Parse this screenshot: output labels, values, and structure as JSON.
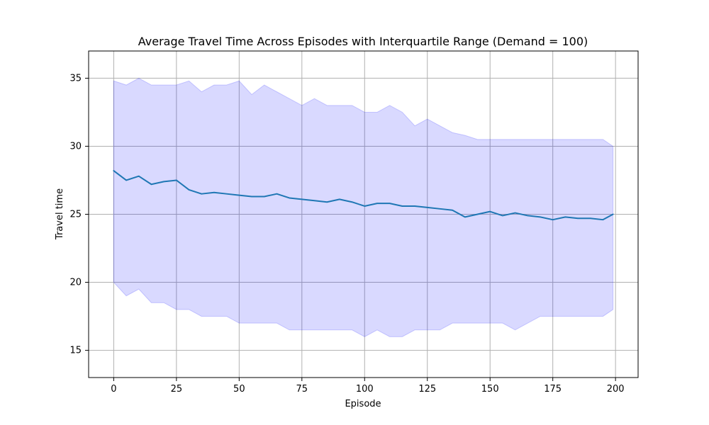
{
  "chart_data": {
    "type": "line",
    "title": "Average Travel Time Across Episodes with Interquartile Range (Demand = 100)",
    "xlabel": "Episode",
    "ylabel": "Travel time",
    "xlim": [
      -10,
      209
    ],
    "ylim": [
      13,
      37
    ],
    "xticks": [
      0,
      25,
      50,
      75,
      100,
      125,
      150,
      175,
      200
    ],
    "yticks": [
      15,
      20,
      25,
      30,
      35
    ],
    "grid": true,
    "x": [
      0,
      5,
      10,
      15,
      20,
      25,
      30,
      35,
      40,
      45,
      50,
      55,
      60,
      65,
      70,
      75,
      80,
      85,
      90,
      95,
      100,
      105,
      110,
      115,
      120,
      125,
      130,
      135,
      140,
      145,
      150,
      155,
      160,
      165,
      170,
      175,
      180,
      185,
      190,
      195,
      199
    ],
    "series": [
      {
        "type": "line",
        "color": "#1f77b4",
        "values": [
          28.2,
          27.5,
          27.8,
          27.2,
          27.4,
          27.5,
          26.8,
          26.5,
          26.6,
          26.5,
          26.4,
          26.3,
          26.3,
          26.5,
          26.2,
          26.1,
          26.0,
          25.9,
          26.1,
          25.9,
          25.6,
          25.8,
          25.8,
          25.6,
          25.6,
          25.5,
          25.4,
          25.3,
          24.8,
          25.0,
          25.2,
          24.9,
          25.1,
          24.9,
          24.8,
          24.6,
          24.8,
          24.7,
          24.7,
          24.6,
          25.0
        ]
      },
      {
        "type": "area",
        "color": "#0000ff",
        "opacity": 0.15,
        "upper": [
          34.8,
          34.5,
          35.0,
          34.5,
          34.5,
          34.5,
          34.8,
          34.0,
          34.5,
          34.5,
          34.8,
          33.8,
          34.5,
          34.0,
          33.5,
          33.0,
          33.5,
          33.0,
          33.0,
          33.0,
          32.5,
          32.5,
          33.0,
          32.5,
          31.5,
          32.0,
          31.5,
          31.0,
          30.8,
          30.5,
          30.5,
          30.5,
          30.5,
          30.5,
          30.5,
          30.5,
          30.5,
          30.5,
          30.5,
          30.5,
          30.0
        ],
        "lower": [
          20.0,
          19.0,
          19.5,
          18.5,
          18.5,
          18.0,
          18.0,
          17.5,
          17.5,
          17.5,
          17.0,
          17.0,
          17.0,
          17.0,
          16.5,
          16.5,
          16.5,
          16.5,
          16.5,
          16.5,
          16.0,
          16.5,
          16.0,
          16.0,
          16.5,
          16.5,
          16.5,
          17.0,
          17.0,
          17.0,
          17.0,
          17.0,
          16.5,
          17.0,
          17.5,
          17.5,
          17.5,
          17.5,
          17.5,
          17.5,
          18.0
        ]
      }
    ]
  }
}
